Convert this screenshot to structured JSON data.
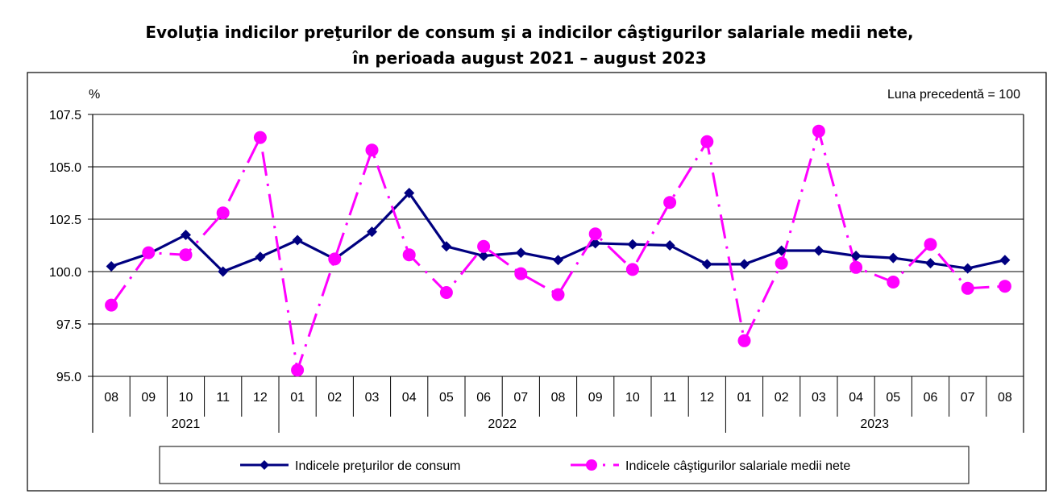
{
  "title_line1": "Evoluţia indicilor preţurilor de consum şi a indicilor câştigurilor salariale medii nete,",
  "title_line2": "în perioada august 2021 – august 2023",
  "chart_data": {
    "type": "line",
    "ylabel": "%",
    "annotation": "Luna precedentă = 100",
    "ylim": [
      95.0,
      107.5
    ],
    "yticks": [
      "95.0",
      "97.5",
      "100.0",
      "102.5",
      "105.0",
      "107.5"
    ],
    "months": [
      "08",
      "09",
      "10",
      "11",
      "12",
      "01",
      "02",
      "03",
      "04",
      "05",
      "06",
      "07",
      "08",
      "09",
      "10",
      "11",
      "12",
      "01",
      "02",
      "03",
      "04",
      "05",
      "06",
      "07",
      "08"
    ],
    "years": [
      {
        "label": "2021",
        "span": 5
      },
      {
        "label": "2022",
        "span": 12
      },
      {
        "label": "2023",
        "span": 8
      }
    ],
    "grid": true,
    "legend_position": "bottom",
    "series": [
      {
        "name": "Indicele preţurilor de consum",
        "color": "#000080",
        "style": "solid",
        "marker": "diamond",
        "values": [
          100.25,
          100.85,
          101.75,
          100.0,
          100.7,
          101.5,
          100.6,
          101.9,
          103.75,
          101.2,
          100.75,
          100.9,
          100.55,
          101.35,
          101.3,
          101.25,
          100.35,
          100.35,
          101.0,
          101.0,
          100.75,
          100.65,
          100.4,
          100.15,
          100.55
        ]
      },
      {
        "name": "Indicele câştigurilor salariale medii nete",
        "color": "#FF00FF",
        "style": "dashdot",
        "marker": "circle",
        "values": [
          98.4,
          100.9,
          100.8,
          102.8,
          106.4,
          95.3,
          100.6,
          105.8,
          100.8,
          99.0,
          101.2,
          99.9,
          98.9,
          101.8,
          100.1,
          103.3,
          106.2,
          96.7,
          100.4,
          106.7,
          100.2,
          99.5,
          101.3,
          99.2,
          99.3
        ]
      }
    ]
  }
}
